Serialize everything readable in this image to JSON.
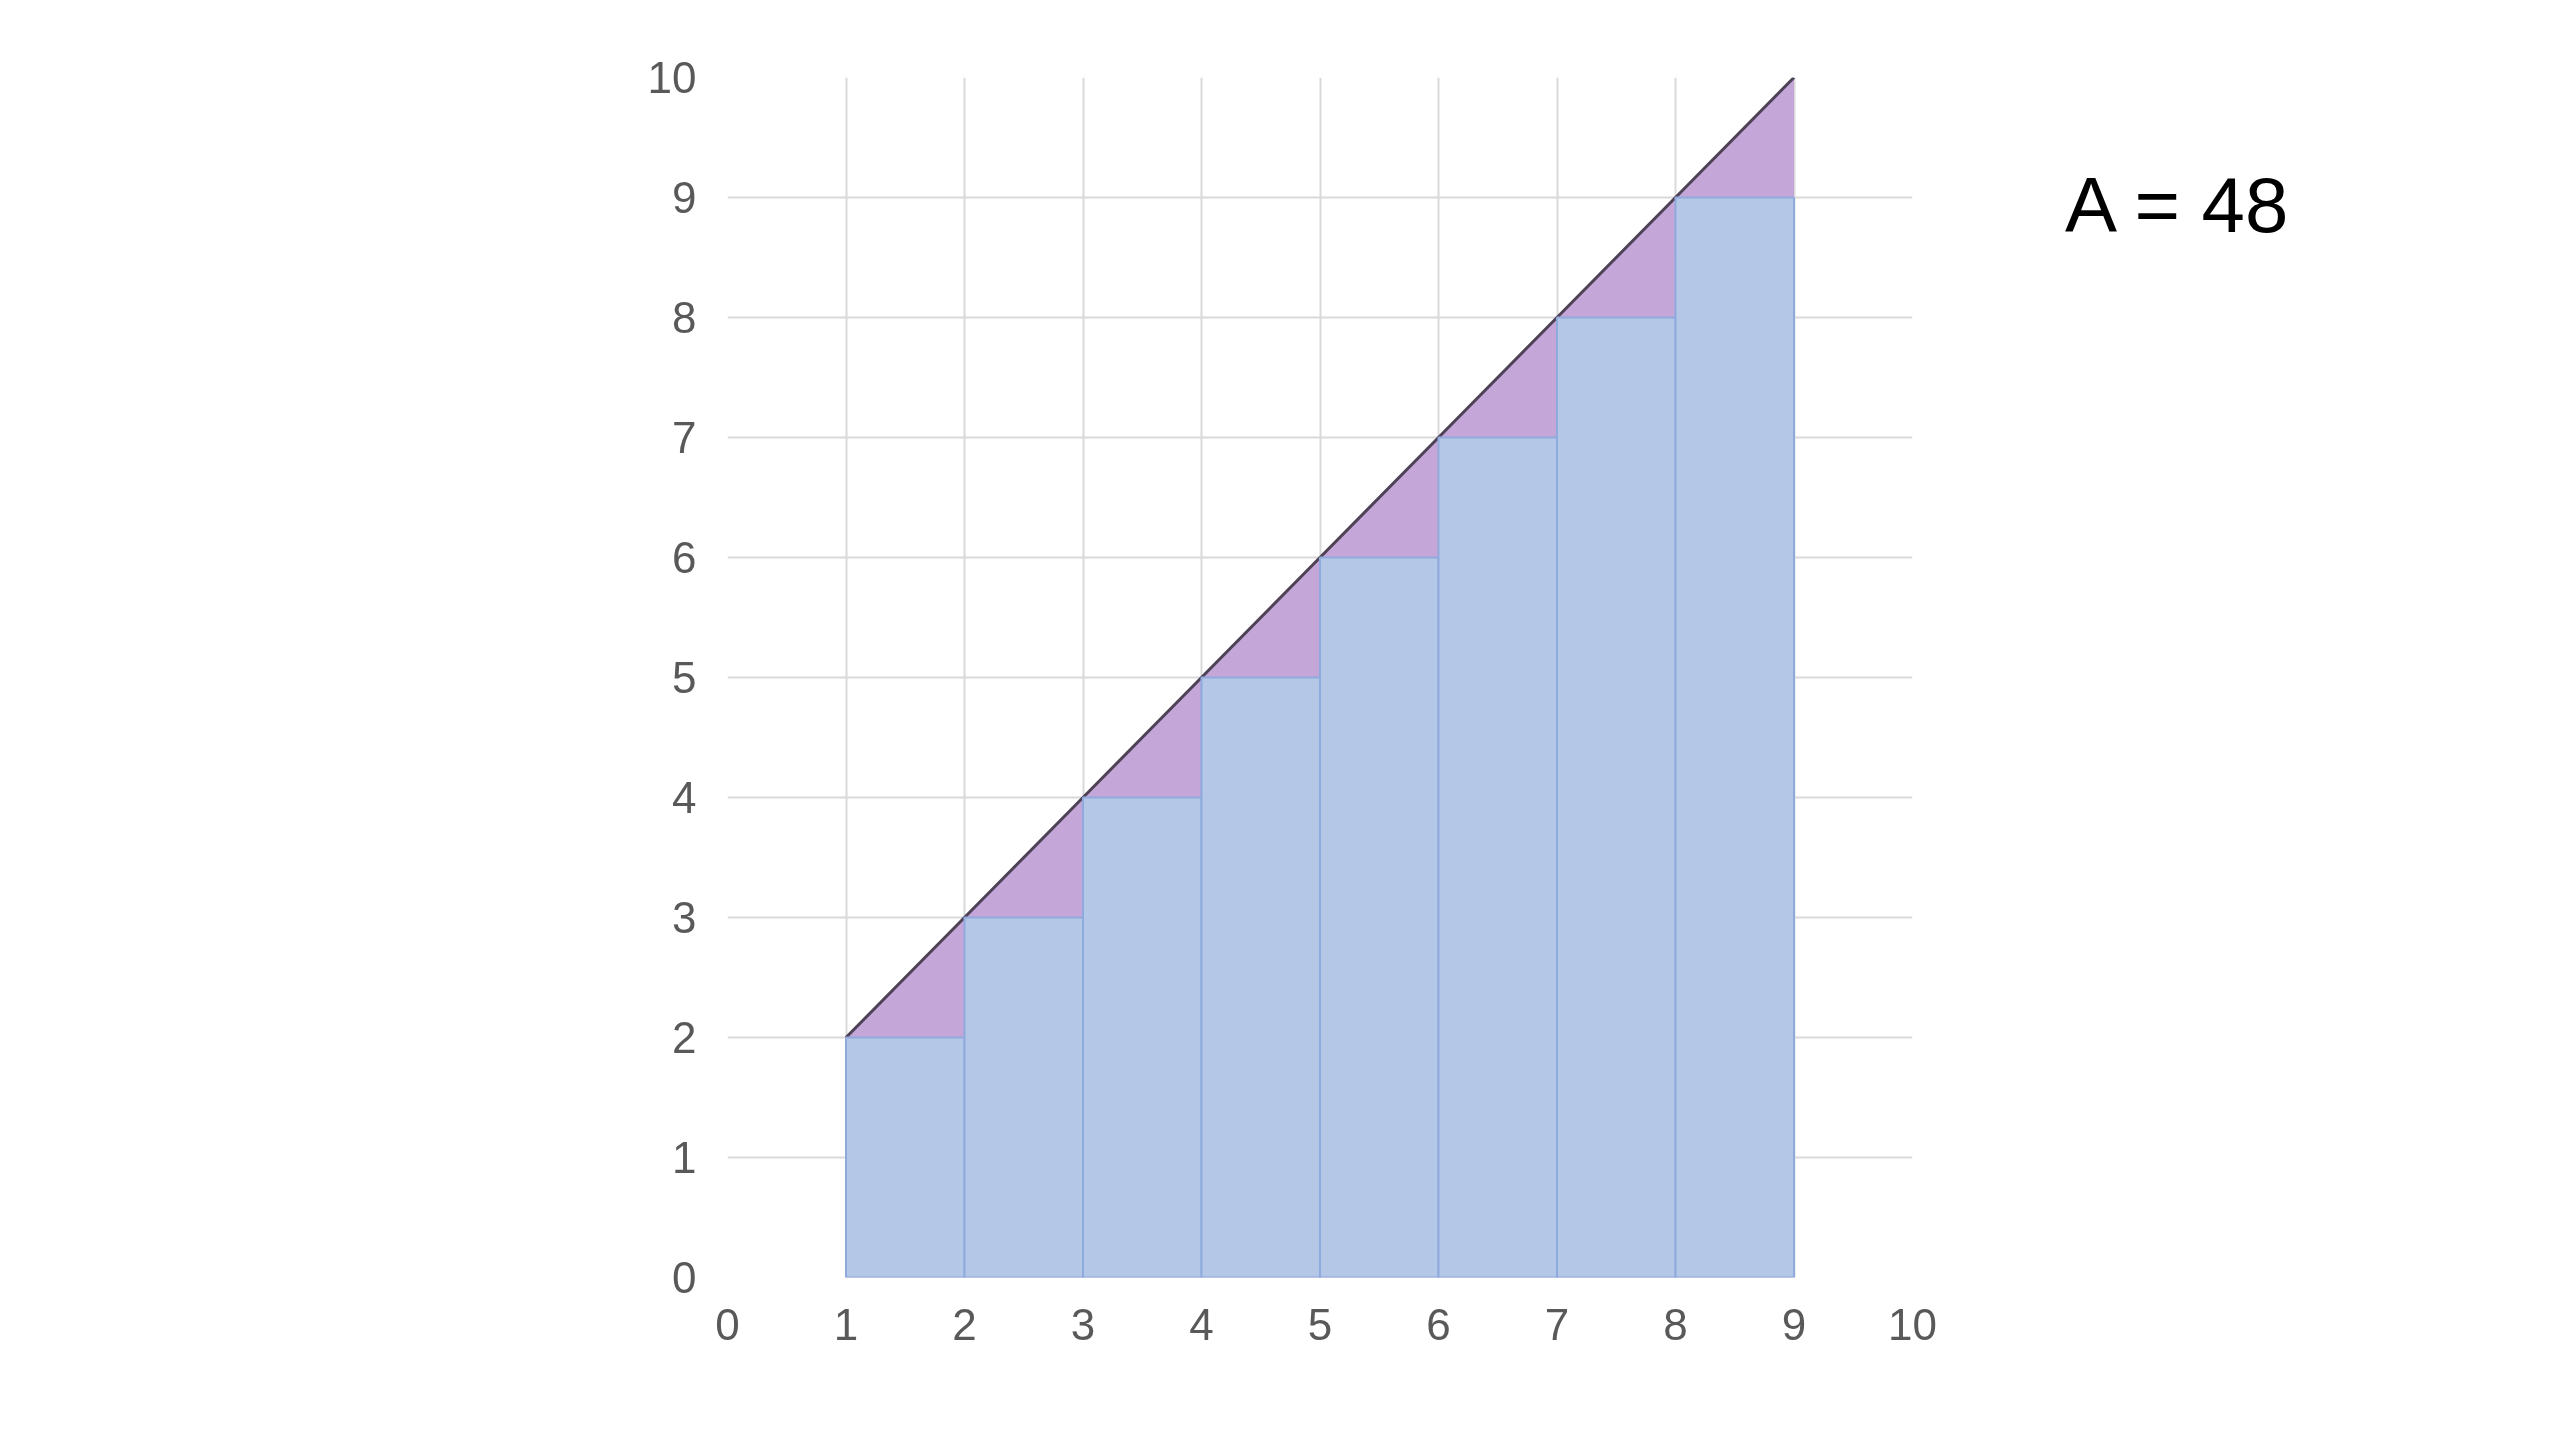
{
  "chart_data": {
    "type": "bar",
    "xlim": [
      0,
      10
    ],
    "ylim": [
      0,
      10
    ],
    "xticks": [
      0,
      1,
      2,
      3,
      4,
      5,
      6,
      7,
      8,
      9,
      10
    ],
    "yticks": [
      0,
      1,
      2,
      3,
      4,
      5,
      6,
      7,
      8,
      9,
      10
    ],
    "grid": true,
    "series": [
      {
        "type": "area",
        "color": "#c4a6d8",
        "x": [
          1,
          2,
          3,
          4,
          5,
          6,
          7,
          8,
          9
        ],
        "values": [
          2,
          3,
          4,
          5,
          6,
          7,
          8,
          9,
          10
        ]
      },
      {
        "color": "#b4c7e7",
        "x": [
          1.5,
          2.5,
          3.5,
          4.5,
          5.5,
          6.5,
          7.5,
          8.5
        ],
        "values": [
          2,
          3,
          4,
          5,
          6,
          7,
          8,
          9
        ]
      }
    ],
    "annotations": [
      "A = 48"
    ]
  }
}
